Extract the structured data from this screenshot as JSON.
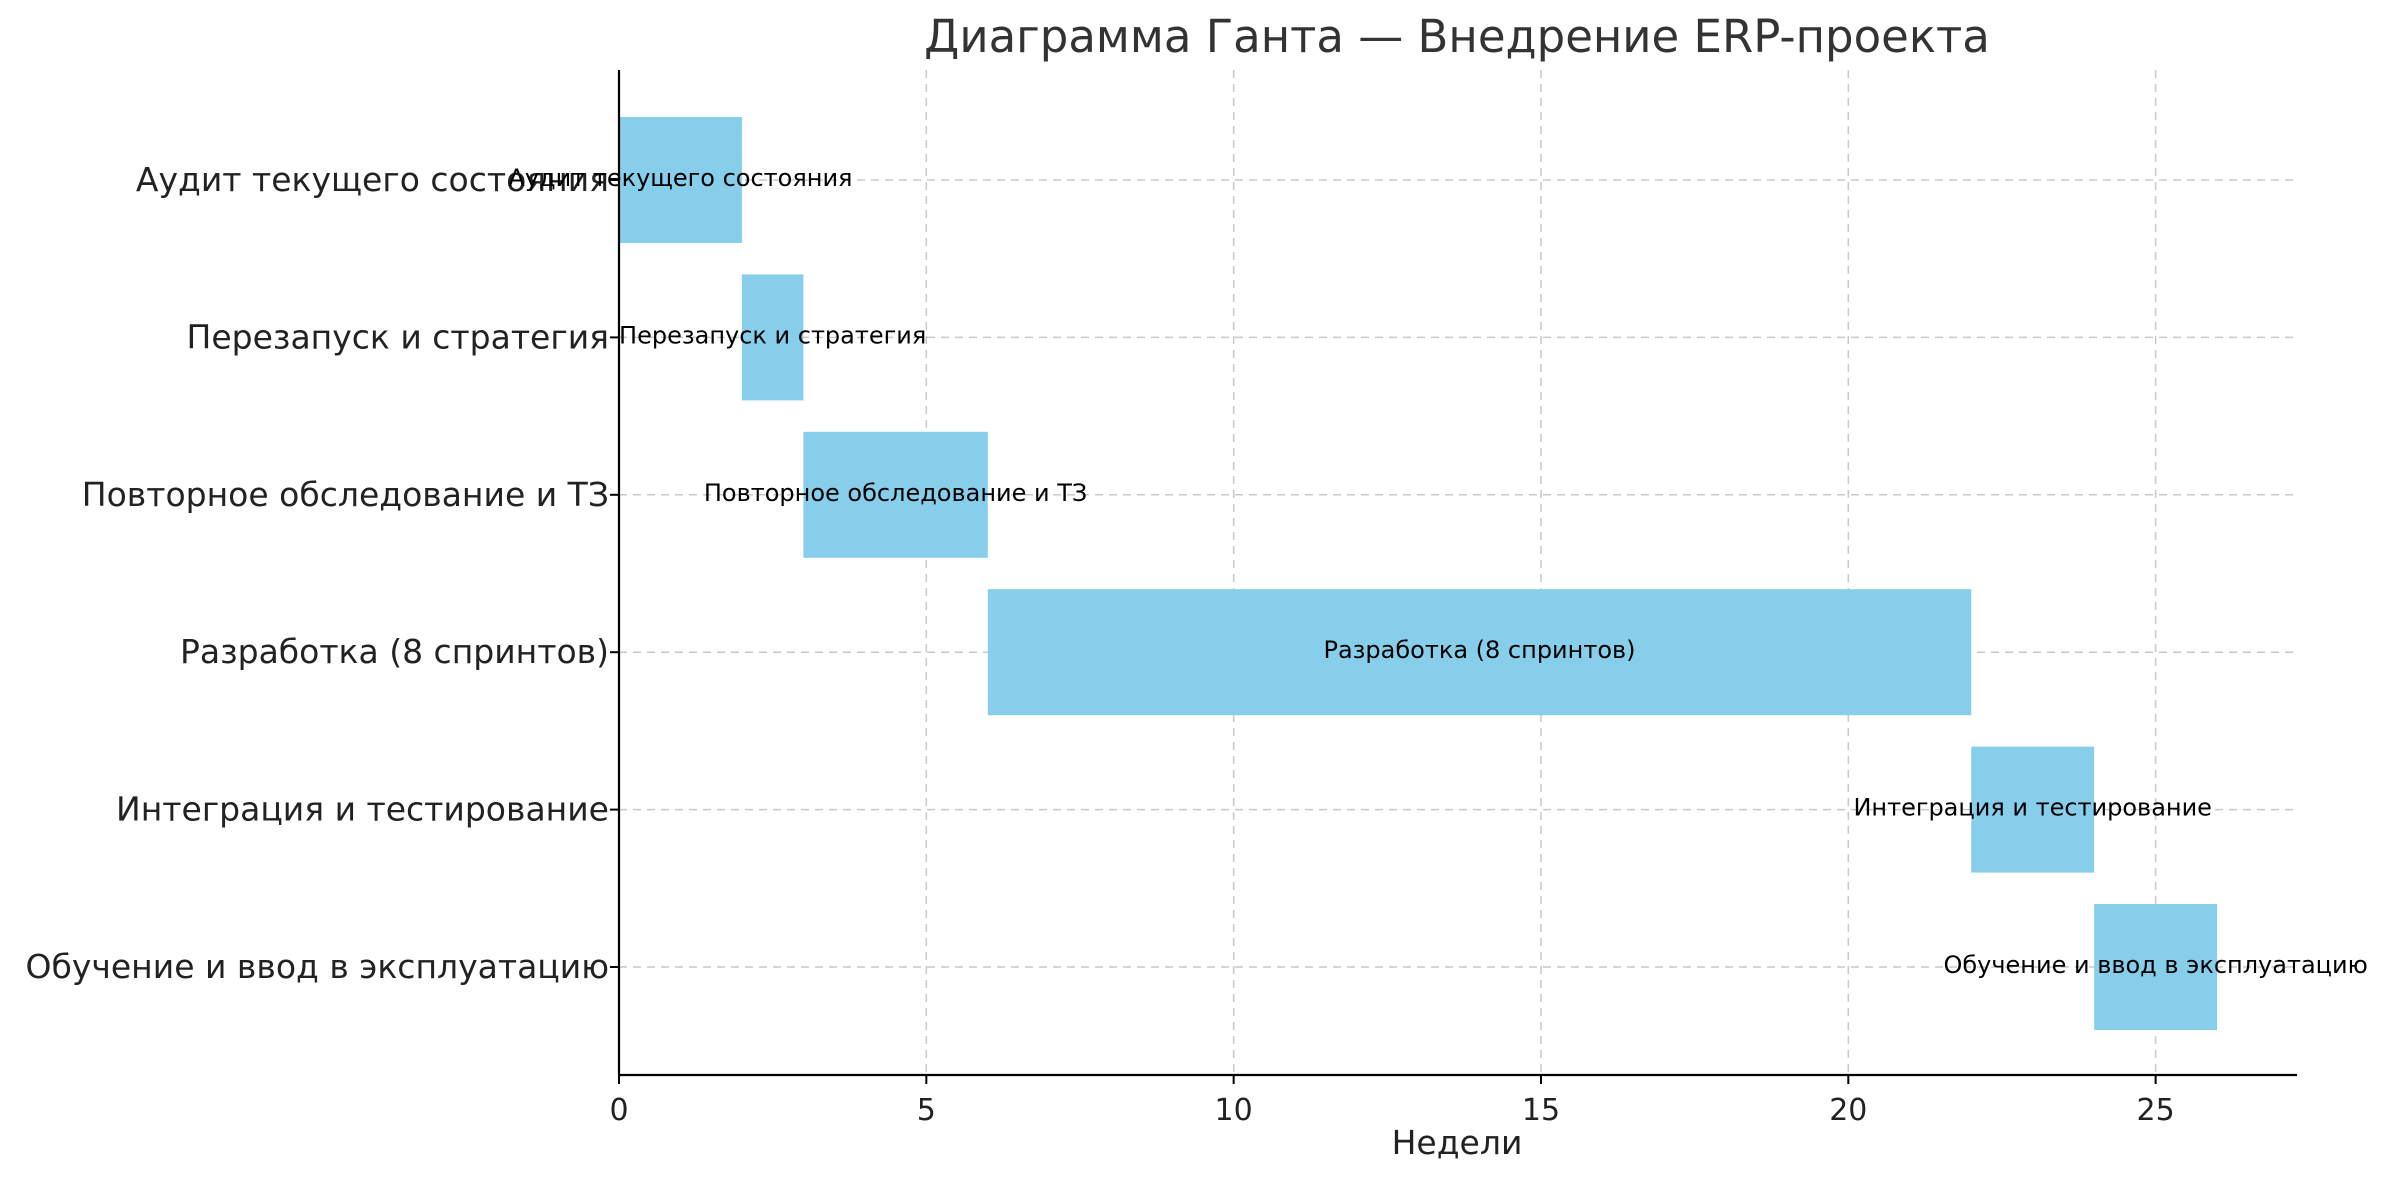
{
  "chart_data": {
    "type": "gantt",
    "title": "Диаграмма Ганта — Внедрение ERP-проекта",
    "xlabel": "Недели",
    "ylabel": "",
    "xlim": [
      0,
      27.3
    ],
    "xticks": [
      0,
      5,
      10,
      15,
      20,
      25
    ],
    "grid": true,
    "bar_color": "#87ceeb",
    "tasks": [
      {
        "name": "Аудит текущего состояния",
        "start": 0,
        "duration": 2
      },
      {
        "name": "Перезапуск и стратегия",
        "start": 2,
        "duration": 1
      },
      {
        "name": "Повторное обследование и ТЗ",
        "start": 3,
        "duration": 3
      },
      {
        "name": "Разработка (8 спринтов)",
        "start": 6,
        "duration": 16
      },
      {
        "name": "Интеграция и тестирование",
        "start": 22,
        "duration": 2
      },
      {
        "name": "Обучение и ввод в эксплуатацию",
        "start": 24,
        "duration": 2
      }
    ]
  }
}
